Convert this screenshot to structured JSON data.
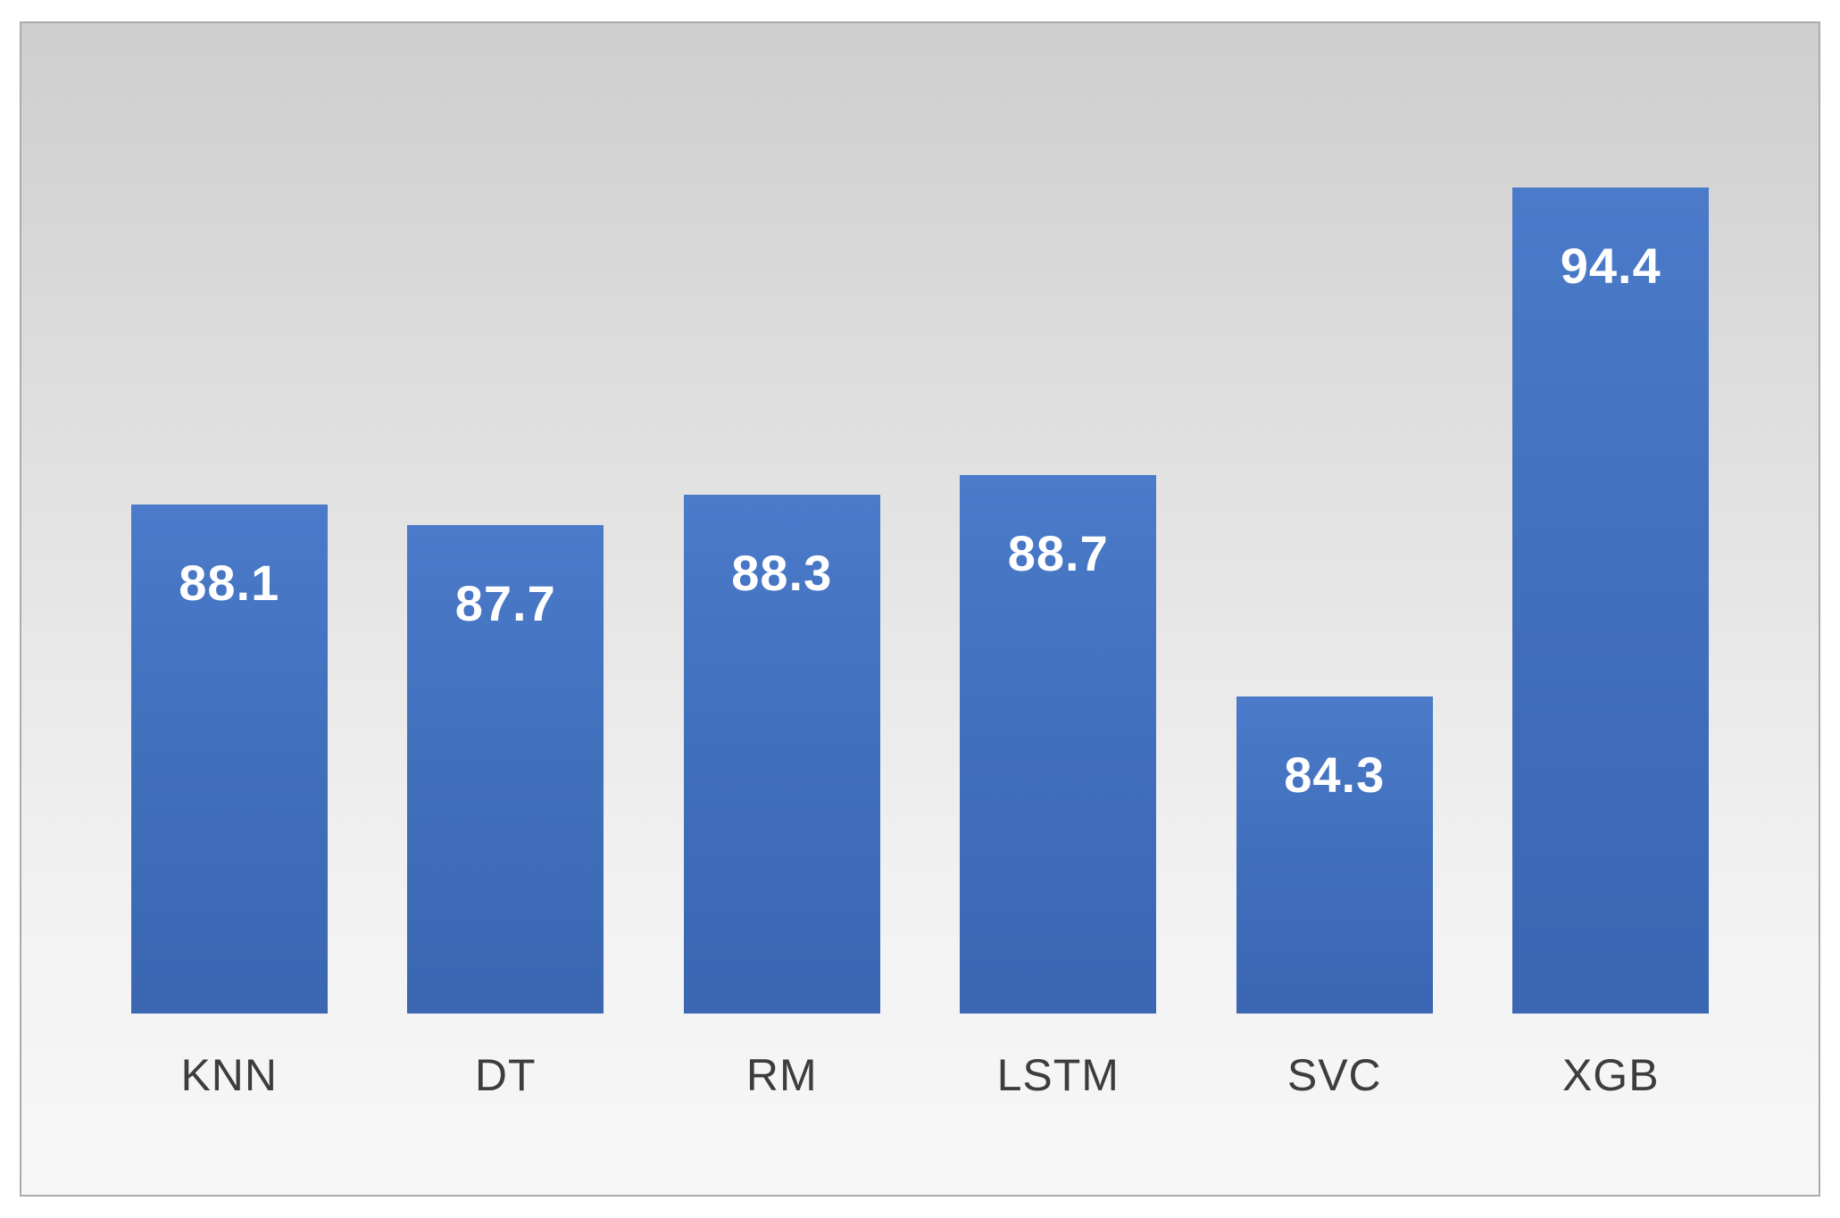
{
  "chart_data": {
    "type": "bar",
    "title": "",
    "xlabel": "",
    "ylabel": "",
    "categories": [
      "KNN",
      "DT",
      "RM",
      "LSTM",
      "SVC",
      "XGB"
    ],
    "values": [
      88.1,
      87.7,
      88.3,
      88.7,
      84.3,
      94.4
    ],
    "value_decimals": 1,
    "ylim": [
      78,
      96
    ],
    "axes_visible": false,
    "grid": false,
    "legend": false,
    "data_labels_position": "inside-end",
    "colors": {
      "bar_top": "#4a7ac9",
      "bar_mid": "#4170bd",
      "bar_bottom": "#3a66b2",
      "value_label": "#ffffff",
      "category_label": "#3d3d3d",
      "frame_border": "#ababab",
      "background_top": "#cecece",
      "background_bottom": "#f7f7f7"
    }
  }
}
